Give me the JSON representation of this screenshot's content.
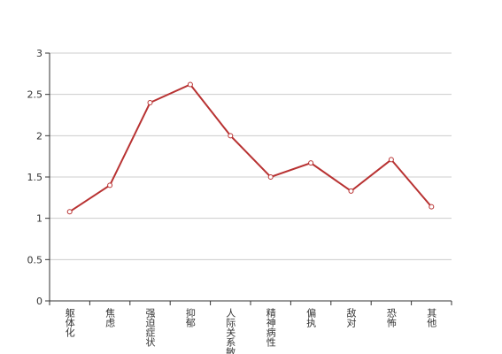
{
  "chart_data": {
    "type": "line",
    "categories": [
      "躯体化",
      "焦虑",
      "强迫症状",
      "抑郁",
      "人际关系敏感",
      "精神病性",
      "偏执",
      "敌对",
      "恐怖",
      "其他"
    ],
    "values": [
      1.08,
      1.4,
      2.4,
      2.62,
      2.0,
      1.5,
      1.67,
      1.33,
      1.71,
      1.14
    ],
    "color": "#b83232",
    "ylim": [
      0,
      3
    ],
    "yticks": [
      0,
      0.5,
      1,
      1.5,
      2,
      2.5,
      3
    ],
    "grid": true
  }
}
